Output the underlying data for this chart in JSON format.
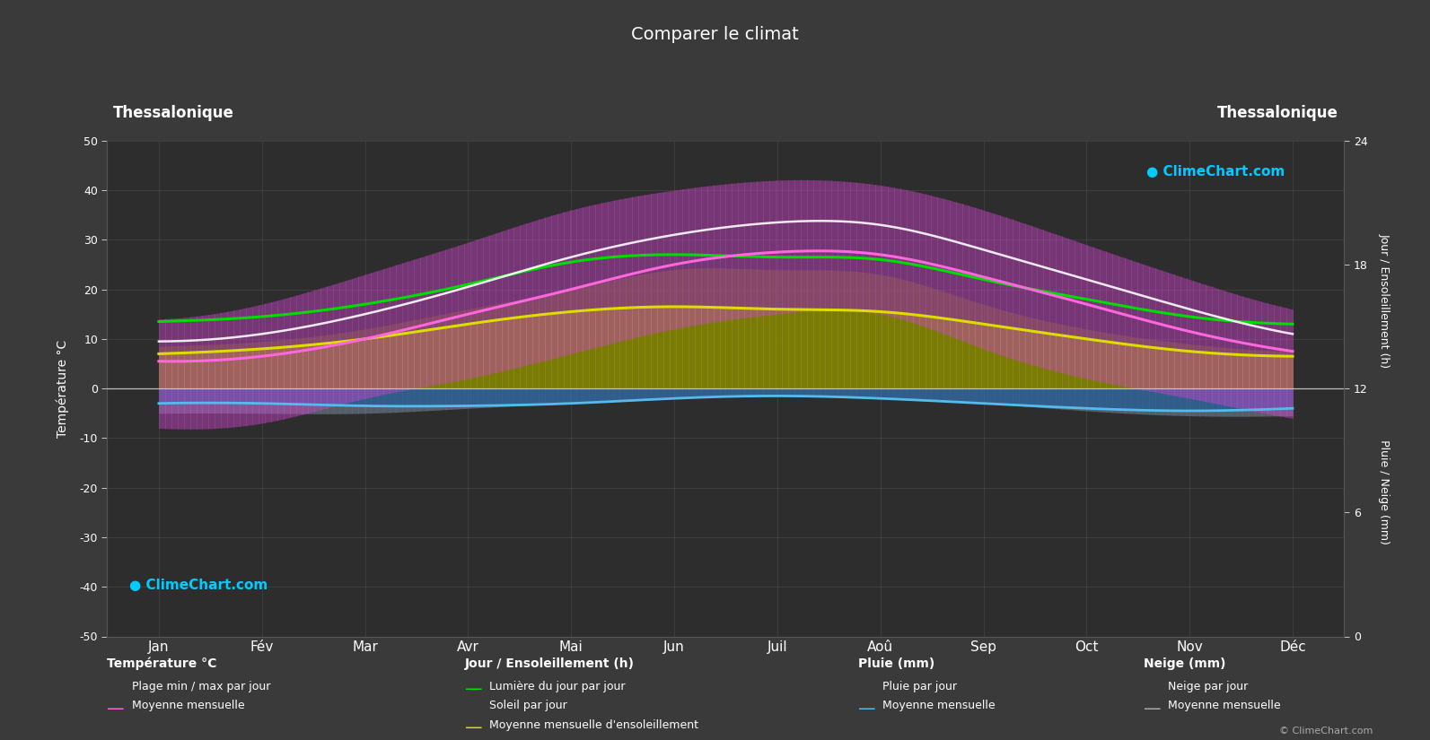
{
  "title": "Comparer le climat",
  "location_left": "Thessalonique",
  "location_right": "Thessalonique",
  "background_color": "#3a3a3a",
  "plot_bg_color": "#2d2d2d",
  "months": [
    "Jan",
    "Fév",
    "Mar",
    "Avr",
    "Mai",
    "Jun",
    "Juil",
    "Aoû",
    "Sep",
    "Oct",
    "Nov",
    "Déc"
  ],
  "temp_ylim": [
    -50,
    50
  ],
  "temp_mean": [
    5.5,
    6.5,
    10.0,
    15.0,
    20.0,
    25.0,
    27.5,
    27.0,
    22.5,
    17.0,
    11.5,
    7.5
  ],
  "temp_max_mean": [
    9.5,
    11.0,
    15.0,
    20.5,
    26.5,
    31.0,
    33.5,
    33.0,
    28.0,
    22.0,
    16.0,
    11.0
  ],
  "temp_min_mean": [
    1.5,
    2.5,
    5.5,
    10.0,
    14.5,
    19.5,
    22.5,
    21.5,
    17.5,
    12.5,
    7.5,
    3.5
  ],
  "temp_max_abs": [
    14.0,
    17.0,
    23.0,
    29.5,
    36.0,
    40.0,
    42.0,
    41.0,
    36.0,
    29.0,
    22.0,
    16.0
  ],
  "temp_min_abs": [
    -8.0,
    -7.0,
    -2.0,
    2.0,
    7.0,
    12.0,
    15.0,
    15.0,
    8.0,
    2.0,
    -2.0,
    -6.0
  ],
  "sunshine_hours_mean": [
    13.5,
    14.5,
    17.0,
    21.0,
    25.5,
    27.0,
    26.5,
    26.0,
    22.0,
    18.0,
    14.5,
    13.0
  ],
  "sunshine_hours_abs": [
    8.5,
    9.5,
    12.0,
    16.0,
    20.0,
    24.0,
    24.0,
    23.0,
    17.0,
    12.0,
    9.0,
    7.5
  ],
  "sunshine_daily_mean": [
    7.0,
    8.0,
    10.0,
    13.0,
    15.5,
    16.5,
    16.0,
    15.5,
    13.0,
    10.0,
    7.5,
    6.5
  ],
  "rain_depth": [
    3.0,
    3.0,
    3.5,
    3.5,
    3.0,
    2.0,
    1.5,
    2.0,
    3.0,
    4.0,
    4.5,
    4.0
  ],
  "snow_depth": [
    2.0,
    2.0,
    1.5,
    0.5,
    0.0,
    0.0,
    0.0,
    0.0,
    0.0,
    0.5,
    1.0,
    1.5
  ],
  "text_color": "#ffffff",
  "grid_color": "#555555",
  "green_line_color": "#00dd00",
  "yellow_line_color": "#dddd00",
  "pink_line_color": "#ff66dd",
  "white_line_color": "#ffffff",
  "blue_line_color": "#55bbee",
  "rain_bar_color": "#3377bb",
  "snow_bar_color": "#778899",
  "sun_fill_color": "#888800",
  "sun_bar_color": "#aaaa00",
  "pink_fill_color": "#cc44cc",
  "logo_color_cyan": "#00ccff"
}
